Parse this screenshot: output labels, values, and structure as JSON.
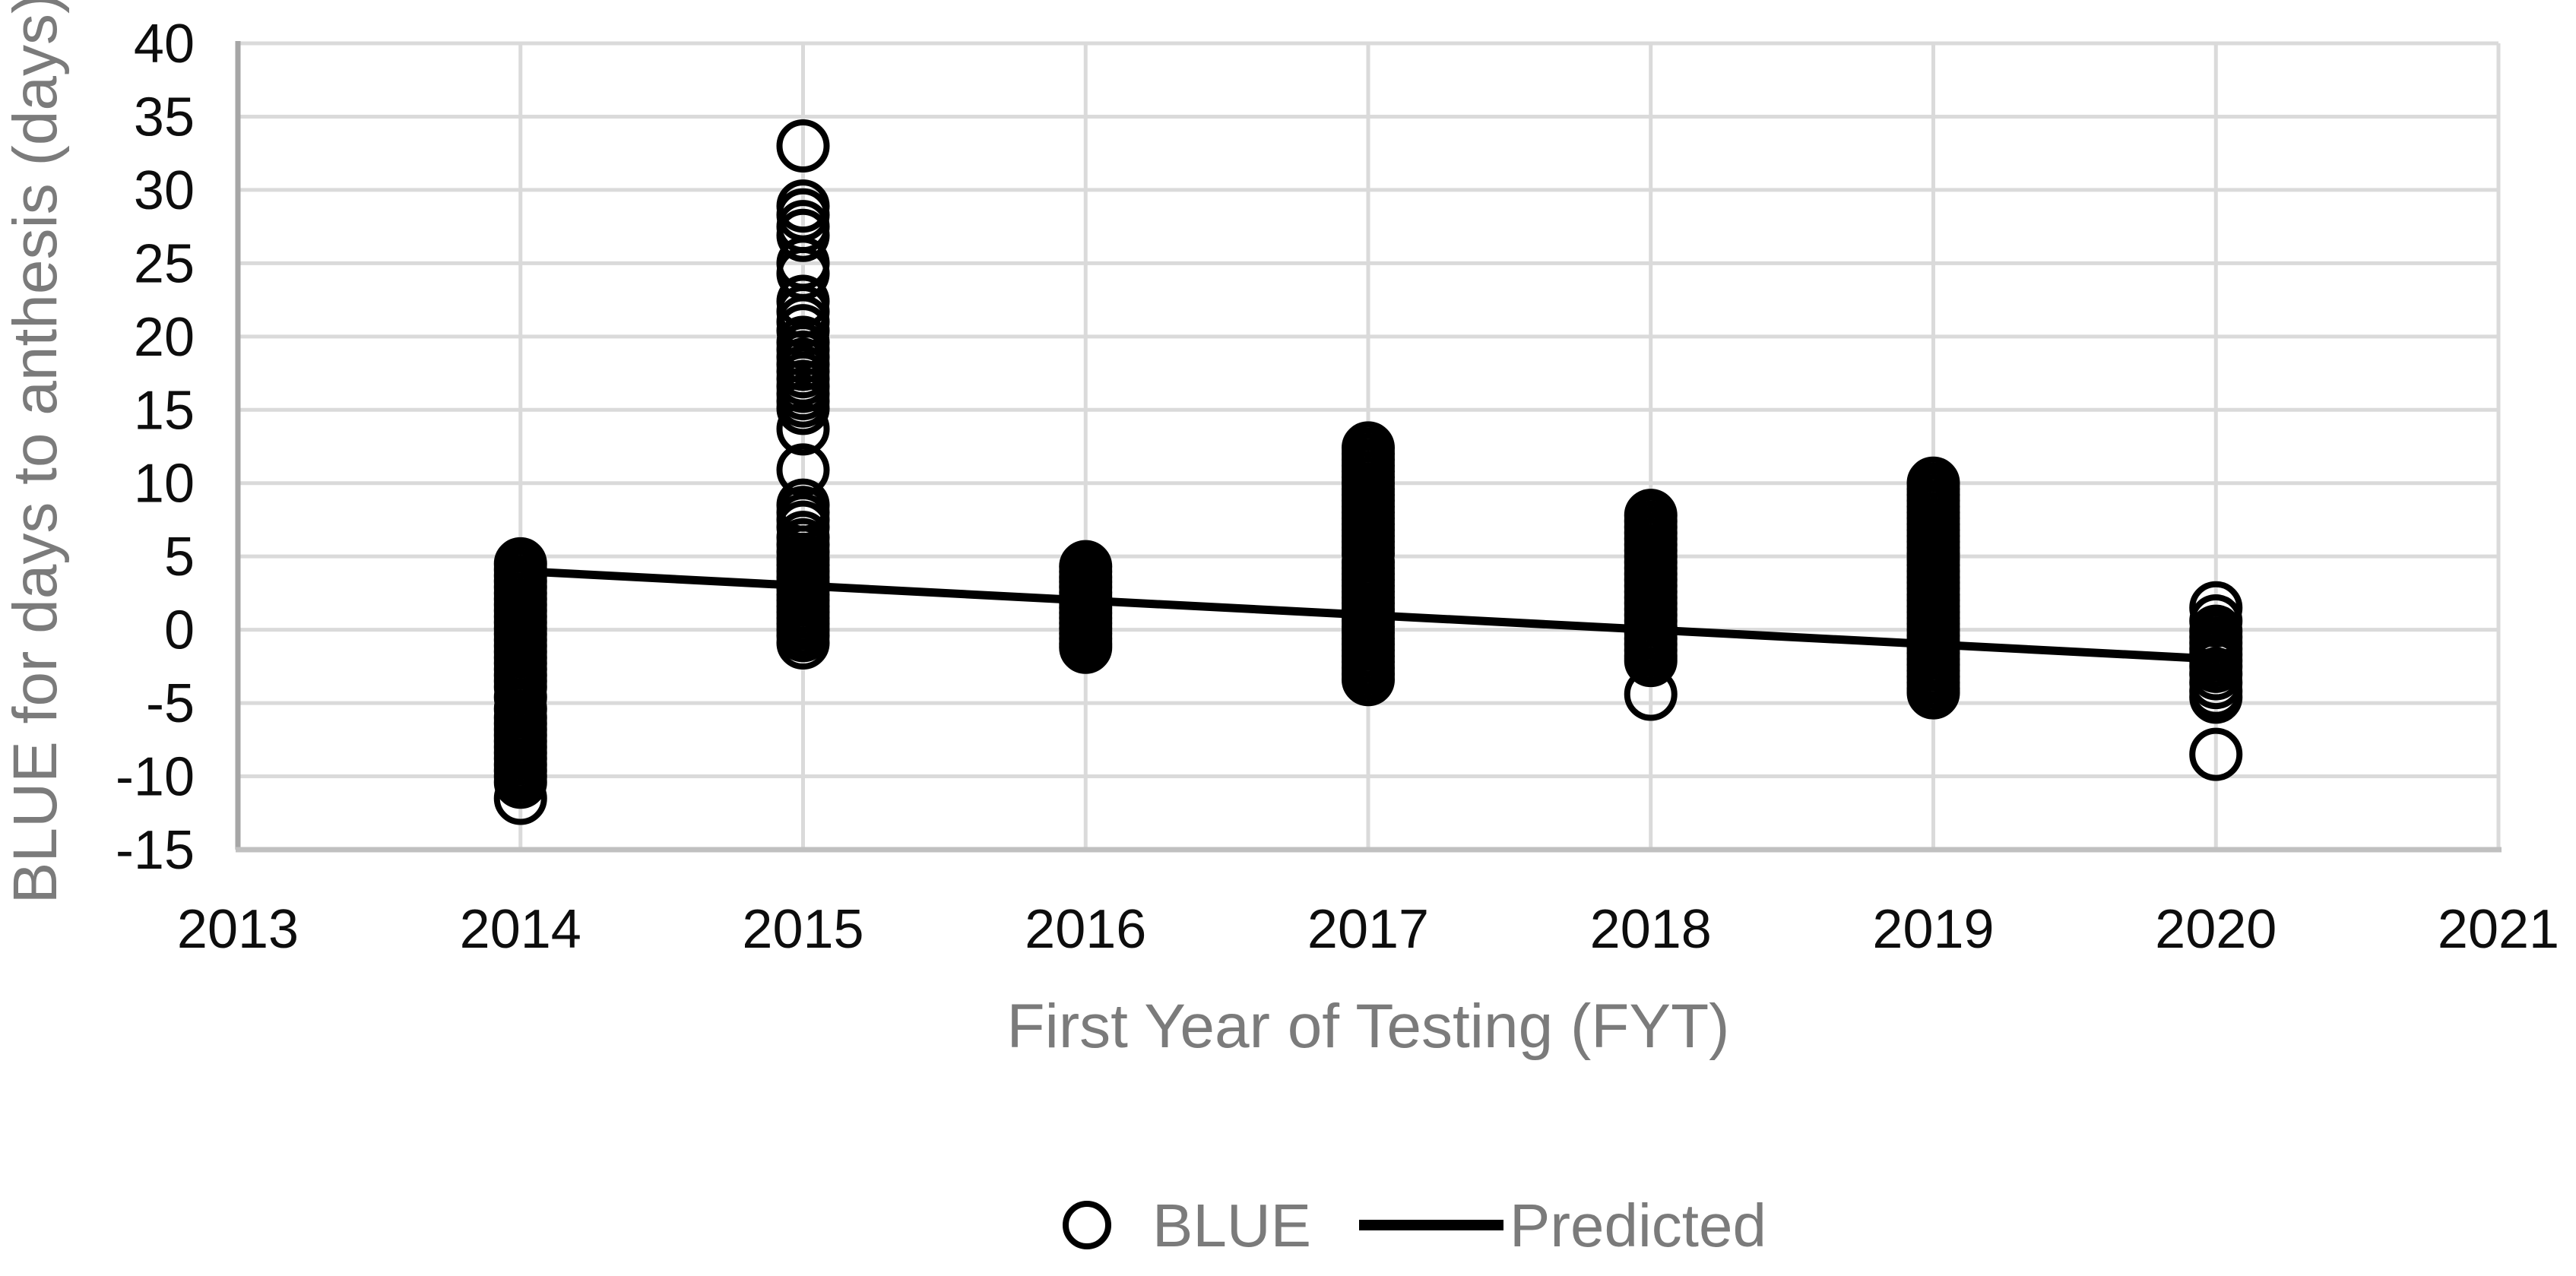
{
  "figure": {
    "background": "#ffffff"
  },
  "chart_data": {
    "type": "scatter",
    "title": "",
    "xlabel": "First Year of Testing (FYT)",
    "ylabel": "BLUE for days to anthesis (days)",
    "xlim": [
      2013,
      2021
    ],
    "ylim": [
      -15,
      40
    ],
    "x_ticks": [
      2013,
      2014,
      2015,
      2016,
      2017,
      2018,
      2019,
      2020,
      2021
    ],
    "y_ticks": [
      40,
      35,
      30,
      25,
      20,
      15,
      10,
      5,
      0,
      -5,
      -10,
      -15
    ],
    "grid": true,
    "legend": {
      "position": "bottom",
      "entries": [
        {
          "label": "BLUE",
          "marker": "open-circle"
        },
        {
          "label": "Predicted",
          "marker": "line"
        }
      ]
    },
    "colors": {
      "marker": "#000000",
      "trend_line": "#000000",
      "gridline": "#dadada",
      "left_axis_line": "#a6a6a6",
      "bottom_axis_line": "#c0c0c0",
      "tick_label": "#0d0d0d",
      "axis_title": "#7b7b7b",
      "legend_text": "#7b7b7b"
    },
    "series": [
      {
        "name": "BLUE",
        "type": "scatter",
        "marker": "open-circle",
        "points_by_year": {
          "2014": [
            4.5,
            4.1,
            3.7,
            3.3,
            2.9,
            2.5,
            2.1,
            1.7,
            1.3,
            0.9,
            0.5,
            0.1,
            -0.3,
            -0.7,
            -1.1,
            -1.5,
            -1.9,
            -2.3,
            -2.7,
            -3.1,
            -3.5,
            -3.9,
            -4.6,
            -5.4,
            -6.0,
            -6.4,
            -6.8,
            -7.2,
            -7.6,
            -8.0,
            -8.4,
            -8.8,
            -9.2,
            -9.6,
            -10.0,
            -10.4,
            -11.5
          ],
          "2015": [
            33,
            28.9,
            28.3,
            27.5,
            26.9,
            25.0,
            24.3,
            22.4,
            21.7,
            21.0,
            20.4,
            19.6,
            19.1,
            18.6,
            18.1,
            17.6,
            17.1,
            16.6,
            16.1,
            15.6,
            15.1,
            13.7,
            10.9,
            8.5,
            8.0,
            7.5,
            7.0,
            6.3,
            5.8,
            5.3,
            4.8,
            4.4,
            4.0,
            3.6,
            3.2,
            2.8,
            2.4,
            2.0,
            1.6,
            1.2,
            0.8,
            0.4,
            0.0,
            -0.4,
            -0.9
          ],
          "2016": [
            4.3,
            3.95,
            3.6,
            3.25,
            2.9,
            2.55,
            2.2,
            1.85,
            1.5,
            1.15,
            0.8,
            0.45,
            0.1,
            -0.25,
            -0.6,
            -0.95,
            -1.2
          ],
          "2017": [
            12.4,
            12.0,
            11.6,
            11.2,
            10.8,
            10.4,
            10.0,
            9.6,
            9.2,
            8.8,
            8.4,
            8.0,
            7.6,
            7.2,
            6.8,
            6.4,
            6.0,
            5.6,
            5.2,
            4.6,
            4.2,
            3.8,
            3.4,
            3.0,
            2.6,
            2.2,
            1.8,
            1.4,
            1.0,
            0.6,
            0.2,
            -0.2,
            -0.6,
            -1.0,
            -1.4,
            -1.8,
            -2.2,
            -2.6,
            -3.0,
            -3.4
          ],
          "2018": [
            7.8,
            7.4,
            7.0,
            6.6,
            6.2,
            5.8,
            5.4,
            5.0,
            4.6,
            4.2,
            3.8,
            3.4,
            3.0,
            2.6,
            2.2,
            1.8,
            1.4,
            1.0,
            0.6,
            0.2,
            -0.2,
            -0.6,
            -1.0,
            -1.4,
            -1.8,
            -2.1,
            -4.4
          ],
          "2019": [
            10.0,
            9.6,
            9.2,
            8.8,
            8.4,
            8.0,
            7.6,
            7.2,
            6.8,
            6.4,
            6.0,
            5.6,
            5.2,
            4.8,
            4.4,
            4.0,
            3.6,
            3.2,
            2.8,
            2.4,
            2.0,
            1.6,
            1.2,
            0.8,
            0.4,
            0.0,
            -0.4,
            -0.8,
            -1.2,
            -1.6,
            -2.0,
            -2.4,
            -2.8,
            -3.2,
            -3.6,
            -4.0,
            -4.3
          ],
          "2020": [
            1.5,
            0.6,
            -0.1,
            -0.5,
            -0.9,
            -1.3,
            -1.7,
            -2.1,
            -2.5,
            -3.0,
            -3.6,
            -4.2,
            -4.6,
            -8.5
          ]
        }
      },
      {
        "name": "Predicted",
        "type": "line",
        "points": [
          {
            "x": 2014,
            "y": 4
          },
          {
            "x": 2020,
            "y": -2
          }
        ]
      }
    ]
  }
}
